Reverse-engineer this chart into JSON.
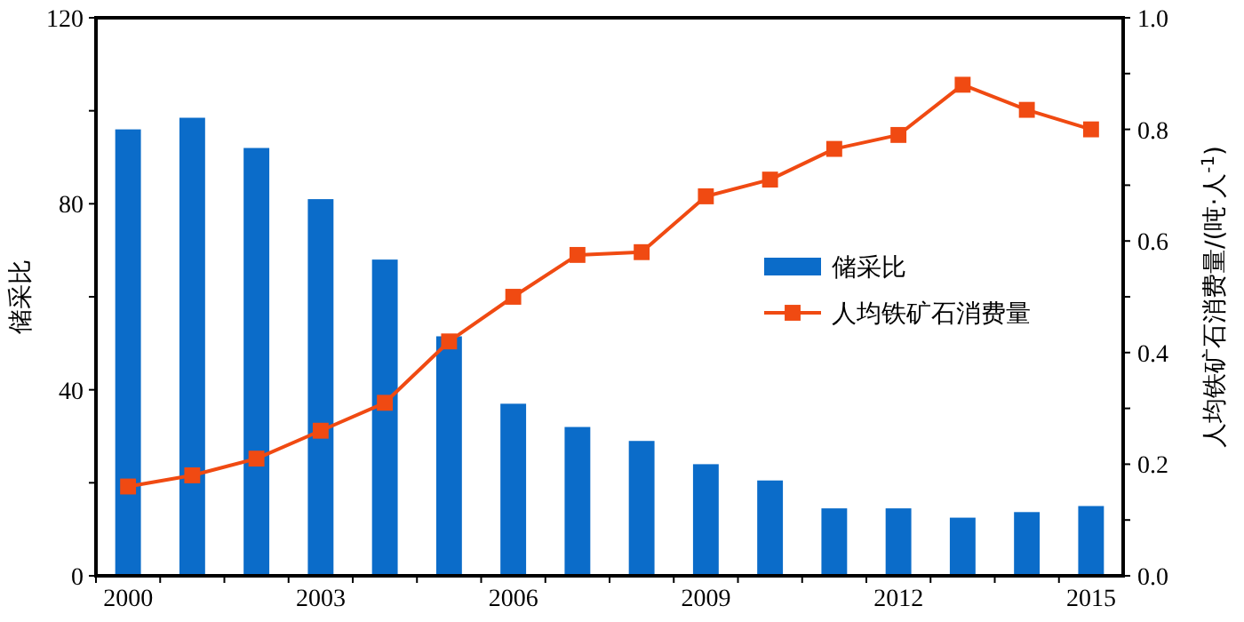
{
  "chart_data": {
    "type": "bar",
    "categories": [
      "2000",
      null,
      null,
      "2003",
      null,
      null,
      "2006",
      null,
      null,
      "2009",
      null,
      null,
      "2012",
      null,
      null,
      "2015"
    ],
    "ylabel": "储采比",
    "y2label": "人均铁矿石消费量/(吨·人$^{-1}$)",
    "ylim": [
      0,
      120
    ],
    "yticks": [
      0,
      {
        "value": 20,
        "label": null
      },
      40,
      {
        "value": 60,
        "label": null
      },
      80,
      {
        "value": 100,
        "label": null
      },
      120
    ],
    "y2lim": [
      0,
      1
    ],
    "y2ticks": [
      {
        "value": 0,
        "label": "0.0"
      },
      {
        "value": 0.1,
        "label": null
      },
      {
        "value": 0.2,
        "label": "0.2"
      },
      {
        "value": 0.3,
        "label": null
      },
      {
        "value": 0.4,
        "label": "0.4"
      },
      {
        "value": 0.5,
        "label": null
      },
      {
        "value": 0.6,
        "label": "0.6"
      },
      {
        "value": 0.7,
        "label": null
      },
      {
        "value": 0.8,
        "label": "0.8"
      },
      {
        "value": 0.9,
        "label": null
      },
      {
        "value": 1,
        "label": "1.0"
      }
    ],
    "legend": "right",
    "grid": false,
    "series": [
      {
        "name": "储采比",
        "color": "#0b6cc9",
        "values": [
          96,
          98.5,
          92,
          81,
          68,
          51.5,
          37,
          32,
          29,
          24,
          20.5,
          14.5,
          14.5,
          12.5,
          13.7,
          15
        ]
      },
      {
        "name": "人均铁矿石消费量",
        "type": "line",
        "axis": "y2",
        "marker": "square",
        "color": "#f04a12",
        "values": [
          0.16,
          0.18,
          0.21,
          0.26,
          0.31,
          0.42,
          0.5,
          0.575,
          0.58,
          0.68,
          0.71,
          0.765,
          0.79,
          0.88,
          0.835,
          0.8
        ]
      }
    ]
  }
}
